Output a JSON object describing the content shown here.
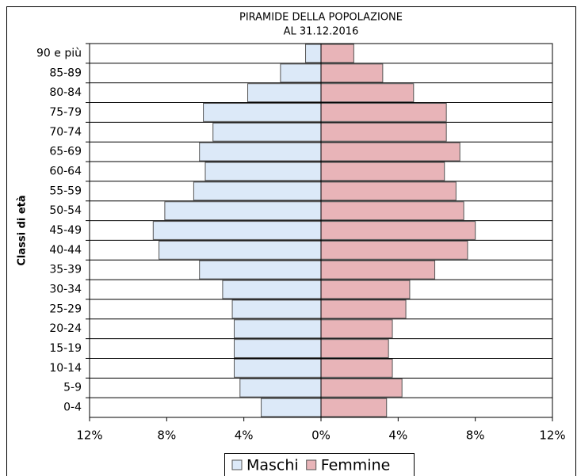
{
  "chart_data": {
    "type": "pyramid",
    "title": "PIRAMIDE DELLA POPOLAZIONE",
    "subtitle": "AL 31.12.2016",
    "y_label": "Classi di età",
    "categories": [
      "90 e più",
      "85-89",
      "80-84",
      "75-79",
      "70-74",
      "65-69",
      "60-64",
      "55-59",
      "50-54",
      "45-49",
      "40-44",
      "35-39",
      "30-34",
      "25-29",
      "20-24",
      "15-19",
      "10-14",
      "5-9",
      "0-4"
    ],
    "series": [
      {
        "name": "Maschi",
        "color": "#dce9f8",
        "values": [
          -0.8,
          -2.1,
          -3.8,
          -6.1,
          -5.6,
          -6.3,
          -6.0,
          -6.6,
          -8.1,
          -8.7,
          -8.4,
          -6.3,
          -5.1,
          -4.6,
          -4.5,
          -4.5,
          -4.5,
          -4.2,
          -3.1
        ]
      },
      {
        "name": "Femmine",
        "color": "#e8b4b8",
        "values": [
          1.7,
          3.2,
          4.8,
          6.5,
          6.5,
          7.2,
          6.4,
          7.0,
          7.4,
          8.0,
          7.6,
          5.9,
          4.6,
          4.4,
          3.7,
          3.5,
          3.7,
          4.2,
          3.4
        ]
      }
    ],
    "xlim": [
      -12,
      12
    ],
    "xticks": [
      {
        "value": -12,
        "label": "12%"
      },
      {
        "value": -8,
        "label": "8%"
      },
      {
        "value": -4,
        "label": "4%"
      },
      {
        "value": 0,
        "label": "0%"
      },
      {
        "value": 4,
        "label": "4%"
      },
      {
        "value": 8,
        "label": "8%"
      },
      {
        "value": 12,
        "label": "12%"
      }
    ],
    "legend": "bottom"
  }
}
